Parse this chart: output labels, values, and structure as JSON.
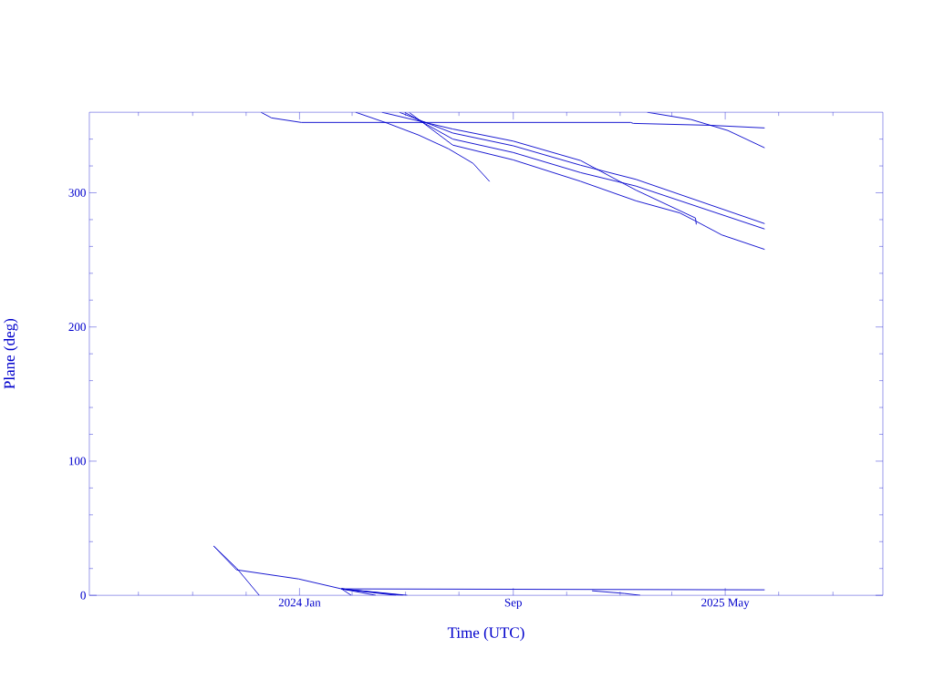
{
  "chart_data": {
    "type": "line",
    "xlabel": "Time (UTC)",
    "ylabel": "Plane (deg)",
    "xlim": [
      "2023-05-06",
      "2025-10-28"
    ],
    "ylim": [
      0,
      360
    ],
    "xticks": [
      {
        "value": "2023-07-01",
        "label": null
      },
      {
        "value": "2023-09-01",
        "label": null
      },
      {
        "value": "2023-11-01",
        "label": null
      },
      {
        "value": "2024-01-01",
        "label": "2024 Jan"
      },
      {
        "value": "2024-03-01",
        "label": null
      },
      {
        "value": "2024-05-01",
        "label": null
      },
      {
        "value": "2024-07-01",
        "label": null
      },
      {
        "value": "2024-09-01",
        "label": "Sep"
      },
      {
        "value": "2024-11-01",
        "label": null
      },
      {
        "value": "2025-01-01",
        "label": null
      },
      {
        "value": "2025-03-01",
        "label": null
      },
      {
        "value": "2025-05-01",
        "label": "2025 May"
      },
      {
        "value": "2025-07-01",
        "label": null
      },
      {
        "value": "2025-09-01",
        "label": null
      }
    ],
    "yticks": [
      0,
      {
        "value": 20,
        "label": null
      },
      {
        "value": 40,
        "label": null
      },
      {
        "value": 60,
        "label": null
      },
      {
        "value": 80,
        "label": null
      },
      100,
      {
        "value": 120,
        "label": null
      },
      {
        "value": 140,
        "label": null
      },
      {
        "value": 160,
        "label": null
      },
      {
        "value": 180,
        "label": null
      },
      200,
      {
        "value": 220,
        "label": null
      },
      {
        "value": 240,
        "label": null
      },
      {
        "value": 260,
        "label": null
      },
      {
        "value": 280,
        "label": null
      },
      300,
      {
        "value": 320,
        "label": null
      },
      {
        "value": 340,
        "label": null
      }
    ],
    "marker": "none",
    "line_style": "solid",
    "series": [
      {
        "color": "#0000cc",
        "x": [
          "2023-09-25",
          "2023-10-21",
          "2023-12-31",
          "2024-02-18",
          "2025-06-15"
        ],
        "values": [
          36.7,
          19,
          12.2,
          4.8,
          4.1
        ]
      },
      {
        "color": "#0000cc",
        "x": [
          "2023-09-25",
          "2023-10-21",
          "2023-11-16",
          "2023-11-17",
          "2023-11-18",
          "2023-11-30",
          "2024-01-03",
          "2025-01-13",
          "2025-01-16",
          "2025-04-13",
          "2025-06-15"
        ],
        "values": [
          36.7,
          20.4,
          0,
          null,
          360,
          355.8,
          352.4,
          352.4,
          351.7,
          350.3,
          348.3
        ]
      },
      {
        "color": "#0000cc",
        "x": [
          "2024-02-18",
          "2024-02-29",
          "2024-03-02",
          "2024-03-05",
          "2024-04-10",
          "2024-05-16",
          "2024-06-19",
          "2024-07-17",
          "2024-08-05"
        ],
        "values": [
          4.8,
          0,
          null,
          360,
          351.9,
          343,
          332.8,
          322,
          308.4
        ]
      },
      {
        "color": "#0000cc",
        "x": [
          "2024-02-18",
          "2024-03-28",
          "2024-03-30",
          "2024-04-04",
          "2024-06-24",
          "2024-09-01",
          "2024-11-17",
          "2025-01-19",
          "2025-03-28",
          "2025-03-29"
        ],
        "values": [
          4.8,
          0,
          null,
          360,
          347.5,
          338.5,
          324,
          302,
          281.2,
          276.4
        ]
      },
      {
        "color": "#0000cc",
        "x": [
          "2024-02-18",
          "2024-04-20",
          "2024-04-22",
          "2024-04-24",
          "2024-06-24",
          "2024-09-01",
          "2024-11-17",
          "2025-01-19",
          "2025-06-15"
        ],
        "values": [
          4.8,
          0,
          null,
          360,
          344.5,
          335,
          320.5,
          310,
          277
        ]
      },
      {
        "color": "#0000cc",
        "x": [
          "2024-02-18",
          "2024-04-28",
          "2024-04-29",
          "2024-04-30",
          "2024-06-24",
          "2024-09-01",
          "2024-11-17",
          "2025-01-19",
          "2025-06-15"
        ],
        "values": [
          4.8,
          0,
          null,
          360,
          340,
          330,
          315,
          305,
          273
        ]
      },
      {
        "color": "#0000cc",
        "x": [
          "2024-02-18",
          "2024-05-03",
          "2024-05-04",
          "2024-05-05",
          "2024-06-24",
          "2024-09-01",
          "2024-11-17",
          "2025-01-19",
          "2025-03-10",
          "2025-03-28",
          "2025-04-27",
          "2025-06-15"
        ],
        "values": [
          4.8,
          0,
          null,
          360,
          335.5,
          324.5,
          308.5,
          294,
          285,
          279,
          268.6,
          257.8
        ]
      },
      {
        "color": "#0000cc",
        "x": [
          "2024-11-30",
          "2025-01-06",
          "2025-01-24",
          "2025-01-28",
          "2025-02-01",
          "2025-03-23",
          "2025-05-04",
          "2025-06-15"
        ],
        "values": [
          3.4,
          1.4,
          0,
          null,
          360,
          354.6,
          346.4,
          333.5
        ]
      }
    ]
  }
}
